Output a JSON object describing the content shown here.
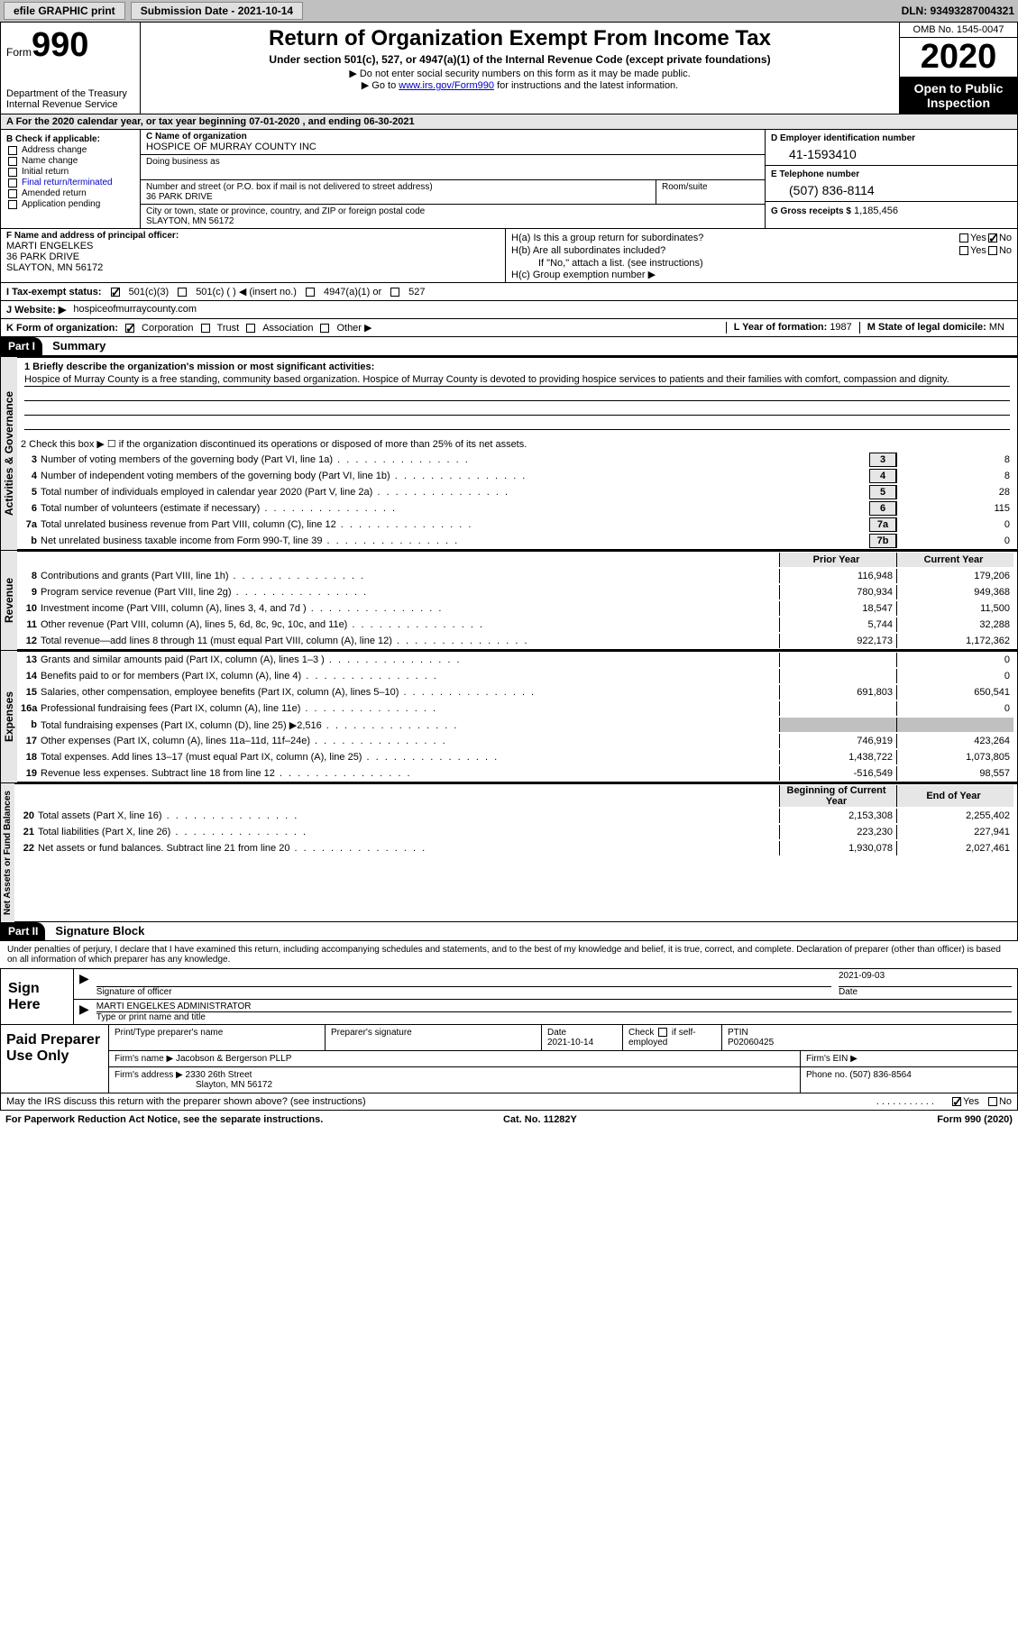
{
  "topbar": {
    "efile": "efile GRAPHIC print",
    "submission": "Submission Date - 2021-10-14",
    "dln": "DLN: 93493287004321"
  },
  "header": {
    "form_prefix": "Form",
    "form_num": "990",
    "dept": "Department of the Treasury\nInternal Revenue Service",
    "title": "Return of Organization Exempt From Income Tax",
    "sub": "Under section 501(c), 527, or 4947(a)(1) of the Internal Revenue Code (except private foundations)",
    "note1": "▶ Do not enter social security numbers on this form as it may be made public.",
    "note2_a": "▶ Go to ",
    "note2_link": "www.irs.gov/Form990",
    "note2_b": " for instructions and the latest information.",
    "omb": "OMB No. 1545-0047",
    "year": "2020",
    "open": "Open to Public Inspection"
  },
  "rowA": "A For the 2020 calendar year, or tax year beginning 07-01-2020  , and ending 06-30-2021",
  "B": {
    "label": "B Check if applicable:",
    "items": [
      "Address change",
      "Name change",
      "Initial return",
      "Final return/terminated",
      "Amended return",
      "Application pending"
    ]
  },
  "C": {
    "lbl": "C Name of organization",
    "name": "HOSPICE OF MURRAY COUNTY INC",
    "dba_lbl": "Doing business as",
    "street_lbl": "Number and street (or P.O. box if mail is not delivered to street address)",
    "street": "36 PARK DRIVE",
    "room_lbl": "Room/suite",
    "city_lbl": "City or town, state or province, country, and ZIP or foreign postal code",
    "city": "SLAYTON, MN  56172"
  },
  "D": {
    "lbl": "D Employer identification number",
    "val": "41-1593410"
  },
  "E": {
    "lbl": "E Telephone number",
    "val": "(507) 836-8114"
  },
  "G": {
    "lbl": "G Gross receipts $",
    "val": "1,185,456"
  },
  "F": {
    "lbl": "F  Name and address of principal officer:",
    "name": "MARTI ENGELKES",
    "street": "36 PARK DRIVE",
    "city": "SLAYTON, MN  56172"
  },
  "H": {
    "a": "H(a)  Is this a group return for subordinates?",
    "a_yes": "Yes",
    "a_no": "No",
    "b": "H(b)  Are all subordinates included?",
    "b_yes": "Yes",
    "b_no": "No",
    "b_note": "If \"No,\" attach a list. (see instructions)",
    "c": "H(c)  Group exemption number ▶"
  },
  "I": {
    "lbl": "I     Tax-exempt status:",
    "o1": "501(c)(3)",
    "o2": "501(c) (  ) ◀ (insert no.)",
    "o3": "4947(a)(1) or",
    "o4": "527"
  },
  "J": {
    "lbl": "J    Website: ▶",
    "val": "hospiceofmurraycounty.com"
  },
  "K": {
    "lbl": "K Form of organization:",
    "o1": "Corporation",
    "o2": "Trust",
    "o3": "Association",
    "o4": "Other ▶"
  },
  "L": {
    "lbl": "L Year of formation:",
    "val": "1987"
  },
  "M": {
    "lbl": "M State of legal domicile:",
    "val": "MN"
  },
  "partI": {
    "hdr": "Part I",
    "title": "Summary"
  },
  "mission": {
    "lbl": "1  Briefly describe the organization's mission or most significant activities:",
    "text": "Hospice of Murray County is a free standing, community based organization. Hospice of Murray County is devoted to providing hospice services to patients and their families with comfort, compassion and dignity."
  },
  "line2": "2    Check this box ▶ ☐ if the organization discontinued its operations or disposed of more than 25% of its net assets.",
  "activities": {
    "label": "Activities & Governance",
    "rows": [
      {
        "n": "3",
        "d": "Number of voting members of the governing body (Part VI, line 1a)",
        "box": "3",
        "v": "8"
      },
      {
        "n": "4",
        "d": "Number of independent voting members of the governing body (Part VI, line 1b)",
        "box": "4",
        "v": "8"
      },
      {
        "n": "5",
        "d": "Total number of individuals employed in calendar year 2020 (Part V, line 2a)",
        "box": "5",
        "v": "28"
      },
      {
        "n": "6",
        "d": "Total number of volunteers (estimate if necessary)",
        "box": "6",
        "v": "115"
      },
      {
        "n": "7a",
        "d": "Total unrelated business revenue from Part VIII, column (C), line 12",
        "box": "7a",
        "v": "0"
      },
      {
        "n": "b",
        "d": "Net unrelated business taxable income from Form 990-T, line 39",
        "box": "7b",
        "v": "0"
      }
    ]
  },
  "revenue": {
    "label": "Revenue",
    "prior_hdr": "Prior Year",
    "current_hdr": "Current Year",
    "rows": [
      {
        "n": "8",
        "d": "Contributions and grants (Part VIII, line 1h)",
        "p": "116,948",
        "c": "179,206"
      },
      {
        "n": "9",
        "d": "Program service revenue (Part VIII, line 2g)",
        "p": "780,934",
        "c": "949,368"
      },
      {
        "n": "10",
        "d": "Investment income (Part VIII, column (A), lines 3, 4, and 7d )",
        "p": "18,547",
        "c": "11,500"
      },
      {
        "n": "11",
        "d": "Other revenue (Part VIII, column (A), lines 5, 6d, 8c, 9c, 10c, and 11e)",
        "p": "5,744",
        "c": "32,288"
      },
      {
        "n": "12",
        "d": "Total revenue—add lines 8 through 11 (must equal Part VIII, column (A), line 12)",
        "p": "922,173",
        "c": "1,172,362"
      }
    ]
  },
  "expenses": {
    "label": "Expenses",
    "rows": [
      {
        "n": "13",
        "d": "Grants and similar amounts paid (Part IX, column (A), lines 1–3 )",
        "p": "",
        "c": "0"
      },
      {
        "n": "14",
        "d": "Benefits paid to or for members (Part IX, column (A), line 4)",
        "p": "",
        "c": "0"
      },
      {
        "n": "15",
        "d": "Salaries, other compensation, employee benefits (Part IX, column (A), lines 5–10)",
        "p": "691,803",
        "c": "650,541"
      },
      {
        "n": "16a",
        "d": "Professional fundraising fees (Part IX, column (A), line 11e)",
        "p": "",
        "c": "0"
      },
      {
        "n": "b",
        "d": "Total fundraising expenses (Part IX, column (D), line 25) ▶2,516",
        "p": "gray",
        "c": "gray"
      },
      {
        "n": "17",
        "d": "Other expenses (Part IX, column (A), lines 11a–11d, 11f–24e)",
        "p": "746,919",
        "c": "423,264"
      },
      {
        "n": "18",
        "d": "Total expenses. Add lines 13–17 (must equal Part IX, column (A), line 25)",
        "p": "1,438,722",
        "c": "1,073,805"
      },
      {
        "n": "19",
        "d": "Revenue less expenses. Subtract line 18 from line 12",
        "p": "-516,549",
        "c": "98,557"
      }
    ]
  },
  "netassets": {
    "label": "Net Assets or Fund Balances",
    "prior_hdr": "Beginning of Current Year",
    "current_hdr": "End of Year",
    "rows": [
      {
        "n": "20",
        "d": "Total assets (Part X, line 16)",
        "p": "2,153,308",
        "c": "2,255,402"
      },
      {
        "n": "21",
        "d": "Total liabilities (Part X, line 26)",
        "p": "223,230",
        "c": "227,941"
      },
      {
        "n": "22",
        "d": "Net assets or fund balances. Subtract line 21 from line 20",
        "p": "1,930,078",
        "c": "2,027,461"
      }
    ]
  },
  "partII": {
    "hdr": "Part II",
    "title": "Signature Block"
  },
  "sig": {
    "decl": "Under penalties of perjury, I declare that I have examined this return, including accompanying schedules and statements, and to the best of my knowledge and belief, it is true, correct, and complete. Declaration of preparer (other than officer) is based on all information of which preparer has any knowledge.",
    "here": "Sign Here",
    "officer_lbl": "Signature of officer",
    "date_lbl": "Date",
    "date": "2021-09-03",
    "name": "MARTI ENGELKES  ADMINISTRATOR",
    "name_lbl": "Type or print name and title"
  },
  "prep": {
    "left": "Paid Preparer Use Only",
    "h1": "Print/Type preparer's name",
    "h2": "Preparer's signature",
    "h3": "Date",
    "h3v": "2021-10-14",
    "h4a": "Check",
    "h4b": "if self-employed",
    "h5": "PTIN",
    "h5v": "P02060425",
    "firm_lbl": "Firm's name   ▶",
    "firm": "Jacobson & Bergerson PLLP",
    "ein_lbl": "Firm's EIN ▶",
    "addr_lbl": "Firm's address ▶",
    "addr1": "2330 26th Street",
    "addr2": "Slayton, MN  56172",
    "phone_lbl": "Phone no.",
    "phone": "(507) 836-8564"
  },
  "discuss": {
    "text": "May the IRS discuss this return with the preparer shown above? (see instructions)",
    "yes": "Yes",
    "no": "No"
  },
  "footer": {
    "left": "For Paperwork Reduction Act Notice, see the separate instructions.",
    "mid": "Cat. No. 11282Y",
    "right": "Form 990 (2020)"
  }
}
